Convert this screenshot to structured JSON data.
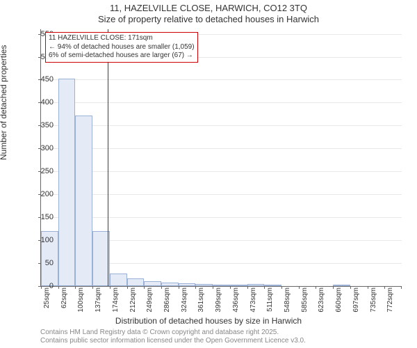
{
  "title": "11, HAZELVILLE CLOSE, HARWICH, CO12 3TQ",
  "subtitle": "Size of property relative to detached houses in Harwich",
  "ylabel": "Number of detached properties",
  "xlabel": "Distribution of detached houses by size in Harwich",
  "footer_line1": "Contains HM Land Registry data © Crown copyright and database right 2025.",
  "footer_line2": "Contains public sector information licensed under the Open Government Licence v3.0.",
  "annotation": {
    "line1": "11 HAZELVILLE CLOSE: 171sqm",
    "line2": "← 94% of detached houses are smaller (1,059)",
    "line3": "6% of semi-detached houses are larger (67) →"
  },
  "chart": {
    "type": "histogram",
    "background_color": "#ffffff",
    "bar_fill": "#e5ebf6",
    "bar_stroke": "#9bb0d6",
    "grid_color": "#e8e8e8",
    "axis_color": "#666666",
    "ref_color": "#cc0000",
    "ref_x_value": 171,
    "ylim": [
      0,
      560
    ],
    "ytick_step": 50,
    "yticks": [
      0,
      50,
      100,
      150,
      200,
      250,
      300,
      350,
      400,
      450,
      500,
      550
    ],
    "x_start": 25,
    "x_step": 37.5,
    "x_unit": "sqm",
    "bins": [
      {
        "label": "25sqm",
        "value": 120
      },
      {
        "label": "62sqm",
        "value": 452
      },
      {
        "label": "100sqm",
        "value": 372
      },
      {
        "label": "137sqm",
        "value": 120
      },
      {
        "label": "174sqm",
        "value": 28
      },
      {
        "label": "212sqm",
        "value": 16
      },
      {
        "label": "249sqm",
        "value": 10
      },
      {
        "label": "286sqm",
        "value": 7
      },
      {
        "label": "324sqm",
        "value": 6
      },
      {
        "label": "361sqm",
        "value": 4
      },
      {
        "label": "399sqm",
        "value": 2
      },
      {
        "label": "436sqm",
        "value": 1
      },
      {
        "label": "473sqm",
        "value": 5
      },
      {
        "label": "511sqm",
        "value": 1
      },
      {
        "label": "548sqm",
        "value": 0
      },
      {
        "label": "585sqm",
        "value": 0
      },
      {
        "label": "623sqm",
        "value": 0
      },
      {
        "label": "660sqm",
        "value": 1
      },
      {
        "label": "697sqm",
        "value": 0
      },
      {
        "label": "735sqm",
        "value": 0
      },
      {
        "label": "772sqm",
        "value": 0
      }
    ]
  }
}
